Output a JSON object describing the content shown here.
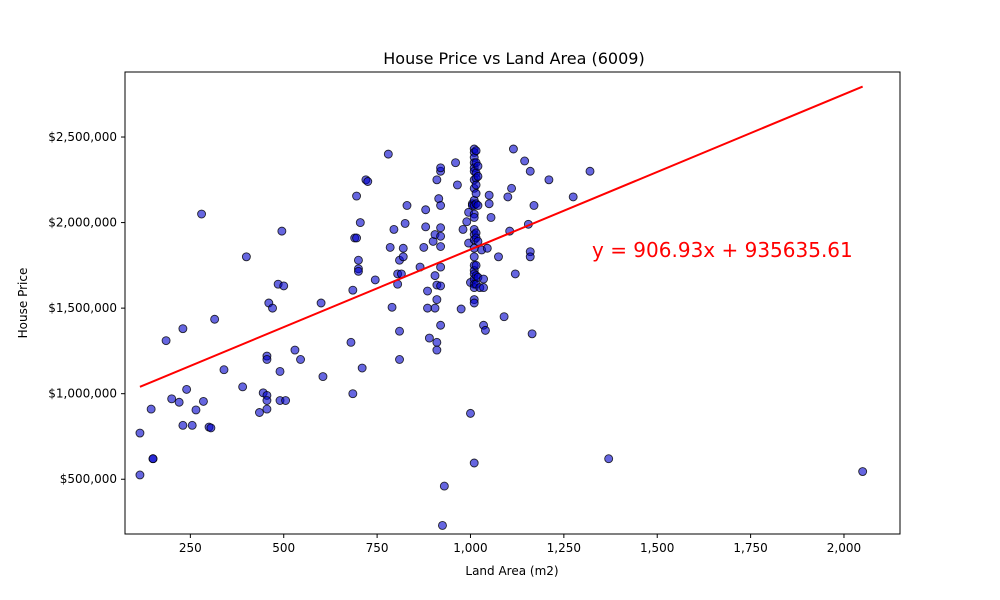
{
  "chart_data": {
    "type": "scatter",
    "title": "House Price vs Land Area (6009)",
    "xlabel": "Land Area (m2)",
    "ylabel": "House Price",
    "xlim": [
      75,
      2150
    ],
    "ylim": [
      180000,
      2880000
    ],
    "xticks": [
      250,
      500,
      750,
      1000,
      1250,
      1500,
      1750,
      2000
    ],
    "xtick_labels": [
      "250",
      "500",
      "750",
      "1,000",
      "1,250",
      "1,500",
      "1,750",
      "2,000"
    ],
    "yticks": [
      500000,
      1000000,
      1500000,
      2000000,
      2500000
    ],
    "ytick_labels": [
      "$500,000",
      "$1,000,000",
      "$1,500,000",
      "$2,000,000",
      "$2,500,000"
    ],
    "grid": false,
    "colors": {
      "points_fill": "#0000cc",
      "points_edge": "#000000",
      "trendline": "#ff0000",
      "equation": "#ff0000"
    },
    "trendline": {
      "slope": 906.93,
      "intercept": 935635.61,
      "x_range": [
        115,
        2050
      ],
      "equation_label": "y = 906.93x + 935635.61"
    },
    "points": [
      [
        115,
        770000
      ],
      [
        115,
        525000
      ],
      [
        145,
        910000
      ],
      [
        150,
        620000
      ],
      [
        150,
        620000
      ],
      [
        185,
        1310000
      ],
      [
        200,
        970000
      ],
      [
        220,
        950000
      ],
      [
        230,
        1380000
      ],
      [
        230,
        815000
      ],
      [
        240,
        1025000
      ],
      [
        255,
        815000
      ],
      [
        265,
        905000
      ],
      [
        280,
        2050000
      ],
      [
        285,
        955000
      ],
      [
        300,
        805000
      ],
      [
        305,
        800000
      ],
      [
        315,
        1435000
      ],
      [
        340,
        1140000
      ],
      [
        390,
        1040000
      ],
      [
        400,
        1800000
      ],
      [
        435,
        890000
      ],
      [
        445,
        1005000
      ],
      [
        455,
        1220000
      ],
      [
        455,
        1200000
      ],
      [
        455,
        990000
      ],
      [
        455,
        960000
      ],
      [
        455,
        910000
      ],
      [
        460,
        1530000
      ],
      [
        470,
        1500000
      ],
      [
        485,
        1640000
      ],
      [
        490,
        1130000
      ],
      [
        490,
        960000
      ],
      [
        495,
        1950000
      ],
      [
        500,
        1630000
      ],
      [
        505,
        960000
      ],
      [
        530,
        1255000
      ],
      [
        545,
        1200000
      ],
      [
        600,
        1530000
      ],
      [
        605,
        1100000
      ],
      [
        680,
        1300000
      ],
      [
        685,
        1605000
      ],
      [
        685,
        1000000
      ],
      [
        690,
        1910000
      ],
      [
        695,
        2155000
      ],
      [
        695,
        1910000
      ],
      [
        700,
        1780000
      ],
      [
        700,
        1730000
      ],
      [
        700,
        1715000
      ],
      [
        705,
        2000000
      ],
      [
        710,
        1150000
      ],
      [
        720,
        2250000
      ],
      [
        725,
        2240000
      ],
      [
        745,
        1665000
      ],
      [
        780,
        2400000
      ],
      [
        785,
        1855000
      ],
      [
        790,
        1505000
      ],
      [
        795,
        1960000
      ],
      [
        805,
        1640000
      ],
      [
        805,
        1700000
      ],
      [
        810,
        1780000
      ],
      [
        810,
        1365000
      ],
      [
        810,
        1200000
      ],
      [
        815,
        1700000
      ],
      [
        820,
        1850000
      ],
      [
        820,
        1800000
      ],
      [
        825,
        1995000
      ],
      [
        830,
        2100000
      ],
      [
        865,
        1740000
      ],
      [
        875,
        1855000
      ],
      [
        880,
        2075000
      ],
      [
        880,
        1975000
      ],
      [
        885,
        1600000
      ],
      [
        885,
        1500000
      ],
      [
        890,
        1325000
      ],
      [
        900,
        1890000
      ],
      [
        905,
        1930000
      ],
      [
        905,
        1690000
      ],
      [
        905,
        1500000
      ],
      [
        910,
        2250000
      ],
      [
        910,
        1635000
      ],
      [
        910,
        1550000
      ],
      [
        910,
        1300000
      ],
      [
        910,
        1255000
      ],
      [
        915,
        2140000
      ],
      [
        920,
        2300000
      ],
      [
        920,
        2320000
      ],
      [
        920,
        2100000
      ],
      [
        920,
        1970000
      ],
      [
        920,
        1920000
      ],
      [
        920,
        1860000
      ],
      [
        920,
        1740000
      ],
      [
        920,
        1630000
      ],
      [
        920,
        1400000
      ],
      [
        930,
        460000
      ],
      [
        925,
        230000
      ],
      [
        960,
        2350000
      ],
      [
        965,
        2220000
      ],
      [
        975,
        1495000
      ],
      [
        980,
        1960000
      ],
      [
        990,
        2005000
      ],
      [
        995,
        1880000
      ],
      [
        995,
        2060000
      ],
      [
        1000,
        885000
      ],
      [
        1000,
        1650000
      ],
      [
        1005,
        2110000
      ],
      [
        1005,
        2100000
      ],
      [
        1010,
        2430000
      ],
      [
        1010,
        2410000
      ],
      [
        1010,
        2380000
      ],
      [
        1010,
        2350000
      ],
      [
        1010,
        2320000
      ],
      [
        1010,
        2300000
      ],
      [
        1010,
        2250000
      ],
      [
        1010,
        2200000
      ],
      [
        1010,
        2130000
      ],
      [
        1010,
        2100000
      ],
      [
        1010,
        2050000
      ],
      [
        1010,
        2030000
      ],
      [
        1010,
        1960000
      ],
      [
        1010,
        1930000
      ],
      [
        1010,
        1900000
      ],
      [
        1010,
        1850000
      ],
      [
        1010,
        1800000
      ],
      [
        1010,
        1750000
      ],
      [
        1010,
        1720000
      ],
      [
        1010,
        1700000
      ],
      [
        1010,
        1670000
      ],
      [
        1010,
        1640000
      ],
      [
        1010,
        1620000
      ],
      [
        1010,
        1550000
      ],
      [
        1010,
        1530000
      ],
      [
        1010,
        595000
      ],
      [
        1015,
        2420000
      ],
      [
        1015,
        2350000
      ],
      [
        1015,
        2290000
      ],
      [
        1015,
        2260000
      ],
      [
        1015,
        2220000
      ],
      [
        1015,
        2170000
      ],
      [
        1015,
        2110000
      ],
      [
        1015,
        1940000
      ],
      [
        1015,
        1910000
      ],
      [
        1015,
        1750000
      ],
      [
        1015,
        1690000
      ],
      [
        1015,
        1640000
      ],
      [
        1020,
        2330000
      ],
      [
        1020,
        2270000
      ],
      [
        1020,
        2100000
      ],
      [
        1020,
        1890000
      ],
      [
        1020,
        1680000
      ],
      [
        1025,
        1620000
      ],
      [
        1030,
        1840000
      ],
      [
        1035,
        1670000
      ],
      [
        1035,
        1620000
      ],
      [
        1035,
        1400000
      ],
      [
        1040,
        1370000
      ],
      [
        1045,
        1850000
      ],
      [
        1050,
        2160000
      ],
      [
        1050,
        2110000
      ],
      [
        1055,
        2030000
      ],
      [
        1075,
        1800000
      ],
      [
        1090,
        1450000
      ],
      [
        1100,
        2150000
      ],
      [
        1105,
        1950000
      ],
      [
        1110,
        2200000
      ],
      [
        1115,
        2430000
      ],
      [
        1120,
        1700000
      ],
      [
        1145,
        2360000
      ],
      [
        1155,
        1990000
      ],
      [
        1160,
        2300000
      ],
      [
        1160,
        1830000
      ],
      [
        1160,
        1800000
      ],
      [
        1165,
        1350000
      ],
      [
        1170,
        2100000
      ],
      [
        1210,
        2250000
      ],
      [
        1275,
        2150000
      ],
      [
        1320,
        2300000
      ],
      [
        1370,
        620000
      ],
      [
        2050,
        545000
      ]
    ]
  }
}
